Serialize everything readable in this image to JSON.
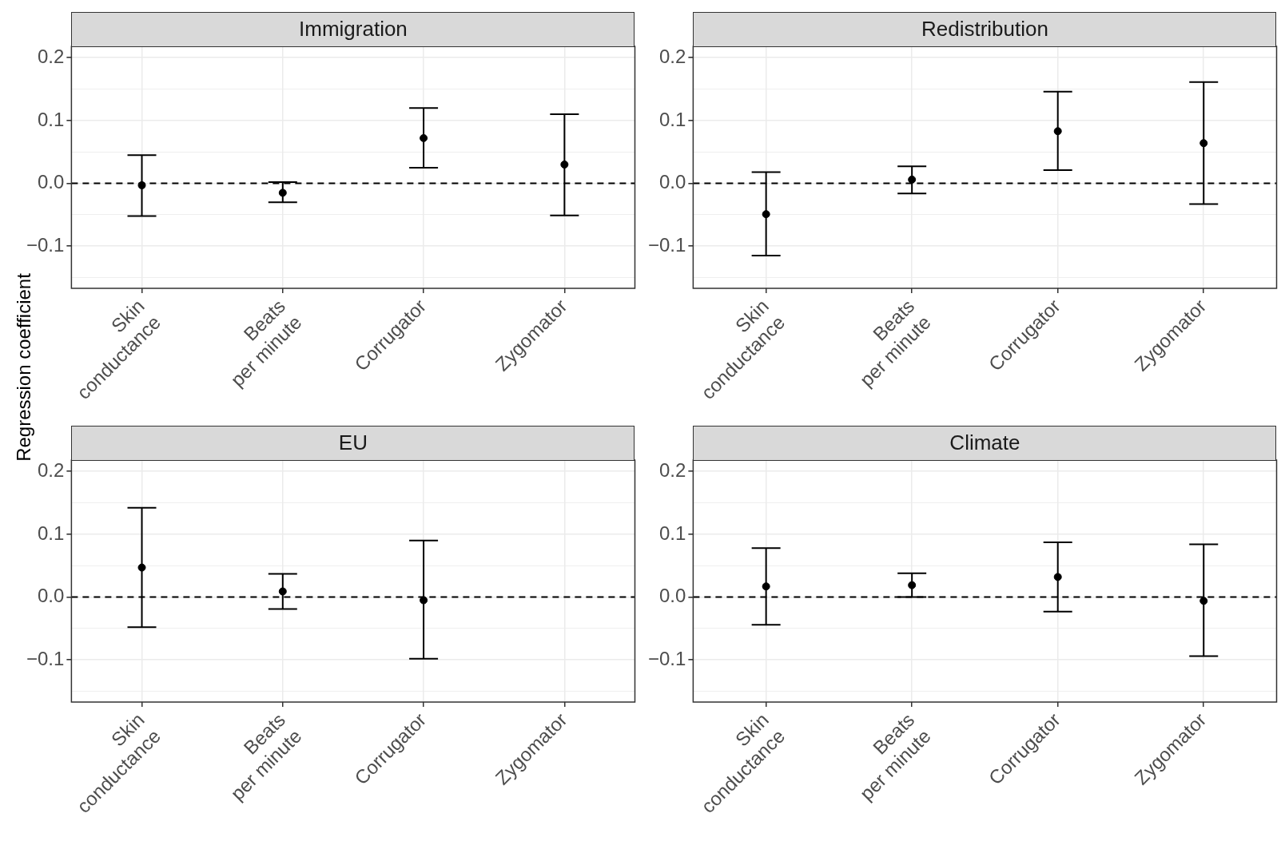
{
  "chart_data": [
    {
      "type": "scatter",
      "title": "Immigration",
      "ylabel": "Regression coefficient",
      "categories": [
        "Skin\nconductance",
        "Beats\nper minute",
        "Corrugator",
        "Zygomator"
      ],
      "values": [
        -0.003,
        -0.015,
        0.072,
        0.03
      ],
      "errors": [
        [
          -0.052,
          0.045
        ],
        [
          -0.03,
          0.002
        ],
        [
          0.025,
          0.12
        ],
        [
          -0.051,
          0.11
        ]
      ],
      "color": "#000000",
      "marker": "circle",
      "ylim": [
        -0.167,
        0.218
      ],
      "yticks": [
        {
          "value": -0.15,
          "label": null
        },
        {
          "value": -0.1,
          "label": "−0.1"
        },
        {
          "value": -0.05,
          "label": null
        },
        {
          "value": 0,
          "label": "0.0"
        },
        {
          "value": 0.05,
          "label": null
        },
        {
          "value": 0.1,
          "label": "0.1"
        },
        {
          "value": 0.15,
          "label": null
        },
        {
          "value": 0.2,
          "label": "0.2"
        }
      ],
      "grid": true,
      "ref_lines": [
        {
          "axis": "y",
          "value": 0,
          "color": "#000000",
          "line_style": "dashed"
        }
      ]
    },
    {
      "type": "scatter",
      "title": "Redistribution",
      "categories": [
        "Skin\nconductance",
        "Beats\nper minute",
        "Corrugator",
        "Zygomator"
      ],
      "values": [
        -0.049,
        0.006,
        0.083,
        0.064
      ],
      "errors": [
        [
          -0.115,
          0.018
        ],
        [
          -0.016,
          0.027
        ],
        [
          0.021,
          0.146
        ],
        [
          -0.033,
          0.161
        ]
      ],
      "color": "#000000",
      "marker": "circle",
      "ylim": [
        -0.167,
        0.218
      ],
      "yticks": [
        {
          "value": -0.15,
          "label": null
        },
        {
          "value": -0.1,
          "label": "−0.1"
        },
        {
          "value": -0.05,
          "label": null
        },
        {
          "value": 0,
          "label": "0.0"
        },
        {
          "value": 0.05,
          "label": null
        },
        {
          "value": 0.1,
          "label": "0.1"
        },
        {
          "value": 0.15,
          "label": null
        },
        {
          "value": 0.2,
          "label": "0.2"
        }
      ],
      "grid": true,
      "ref_lines": [
        {
          "axis": "y",
          "value": 0,
          "color": "#000000",
          "line_style": "dashed"
        }
      ]
    },
    {
      "type": "scatter",
      "title": "EU",
      "categories": [
        "Skin\nconductance",
        "Beats\nper minute",
        "Corrugator",
        "Zygomator"
      ],
      "values": [
        0.047,
        0.009,
        -0.005,
        null
      ],
      "errors": [
        [
          -0.048,
          0.142
        ],
        [
          -0.019,
          0.037
        ],
        [
          -0.098,
          0.09
        ],
        null
      ],
      "color": "#000000",
      "marker": "circle",
      "ylim": [
        -0.167,
        0.218
      ],
      "yticks": [
        {
          "value": -0.15,
          "label": null
        },
        {
          "value": -0.1,
          "label": "−0.1"
        },
        {
          "value": -0.05,
          "label": null
        },
        {
          "value": 0,
          "label": "0.0"
        },
        {
          "value": 0.05,
          "label": null
        },
        {
          "value": 0.1,
          "label": "0.1"
        },
        {
          "value": 0.15,
          "label": null
        },
        {
          "value": 0.2,
          "label": "0.2"
        }
      ],
      "grid": true,
      "ref_lines": [
        {
          "axis": "y",
          "value": 0,
          "color": "#000000",
          "line_style": "dashed"
        }
      ]
    },
    {
      "type": "scatter",
      "title": "Climate",
      "categories": [
        "Skin\nconductance",
        "Beats\nper minute",
        "Corrugator",
        "Zygomator"
      ],
      "values": [
        0.017,
        0.019,
        0.032,
        -0.006
      ],
      "errors": [
        [
          -0.044,
          0.078
        ],
        [
          0.0,
          0.038
        ],
        [
          -0.023,
          0.087
        ],
        [
          -0.094,
          0.084
        ]
      ],
      "color": "#000000",
      "marker": "circle",
      "ylim": [
        -0.167,
        0.218
      ],
      "yticks": [
        {
          "value": -0.15,
          "label": null
        },
        {
          "value": -0.1,
          "label": "−0.1"
        },
        {
          "value": -0.05,
          "label": null
        },
        {
          "value": 0,
          "label": "0.0"
        },
        {
          "value": 0.05,
          "label": null
        },
        {
          "value": 0.1,
          "label": "0.1"
        },
        {
          "value": 0.15,
          "label": null
        },
        {
          "value": 0.2,
          "label": "0.2"
        }
      ],
      "grid": true,
      "ref_lines": [
        {
          "axis": "y",
          "value": 0,
          "color": "#000000",
          "line_style": "dashed"
        }
      ]
    }
  ]
}
